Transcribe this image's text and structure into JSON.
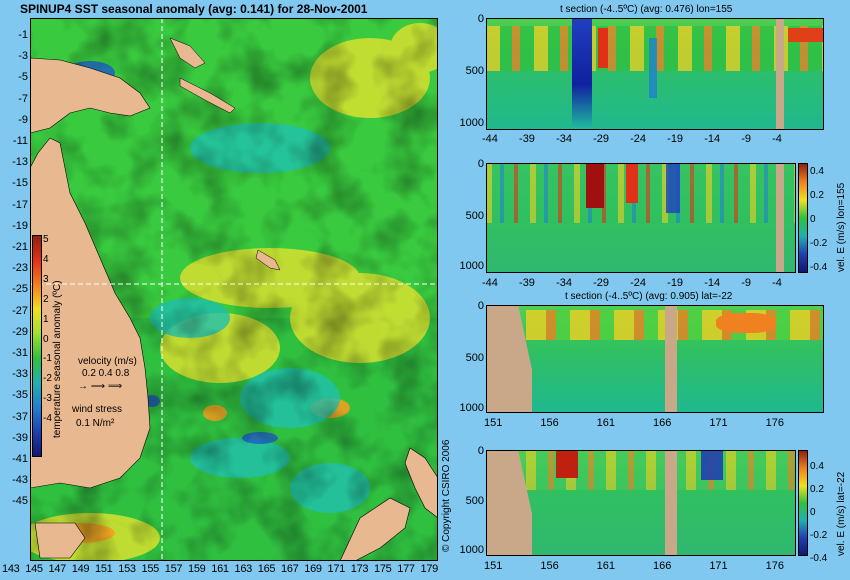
{
  "map": {
    "title": "SPINUP4 SST seasonal anomaly (avg: 0.141) for 28-Nov-2001",
    "y_ticks": [
      "-1",
      "-3",
      "-5",
      "-7",
      "-9",
      "-11",
      "-13",
      "-15",
      "-17",
      "-19",
      "-21",
      "-23",
      "-25",
      "-27",
      "-29",
      "-31",
      "-33",
      "-35",
      "-37",
      "-39",
      "-41",
      "-43",
      "-45"
    ],
    "x_ticks": [
      "143",
      "145",
      "147",
      "149",
      "151",
      "153",
      "155",
      "157",
      "159",
      "161",
      "163",
      "165",
      "167",
      "169",
      "171",
      "173",
      "175",
      "177",
      "179"
    ],
    "colorbar": {
      "label": "temperature seasonal anomaly (ºC)",
      "ticks": [
        "5",
        "4",
        "3",
        "2",
        "1",
        "0",
        "-1",
        "-2",
        "-3",
        "-4"
      ],
      "range": [
        -4,
        5
      ]
    },
    "velocity_legend": {
      "label": "velocity (m/s)",
      "values": "0.2 0.4 0.8"
    },
    "wind_legend": {
      "label": "wind stress",
      "value": "0.1 N/m²"
    },
    "copyright": "© Copyright CSIRO 2006"
  },
  "sections": [
    {
      "title": "t section (-4..5ºC) (avg: 0.476) lon=155",
      "side_label": "",
      "y_ticks": [
        "0",
        "500",
        "1000"
      ],
      "x_ticks": [
        "-44",
        "-39",
        "-34",
        "-29",
        "-24",
        "-19",
        "-14",
        "-9",
        "-4"
      ]
    },
    {
      "title": "",
      "side_label": "vel. E (m/s) lon=155",
      "y_ticks": [
        "0",
        "500",
        "1000"
      ],
      "x_ticks": [
        "-44",
        "-39",
        "-34",
        "-29",
        "-24",
        "-19",
        "-14",
        "-9",
        "-4"
      ],
      "cb_ticks": [
        "0.4",
        "0.2",
        "0",
        "-0.2",
        "-0.4"
      ]
    },
    {
      "title": "t section (-4..5ºC) (avg: 0.905) lat=-22",
      "side_label": "",
      "y_ticks": [
        "0",
        "500",
        "1000"
      ],
      "x_ticks": [
        "151",
        "156",
        "161",
        "166",
        "171",
        "176"
      ]
    },
    {
      "title": "",
      "side_label": "vel. E (m/s) lat=-22",
      "y_ticks": [
        "0",
        "500",
        "1000"
      ],
      "x_ticks": [
        "151",
        "156",
        "161",
        "166",
        "171",
        "176"
      ],
      "cb_ticks": [
        "0.4",
        "0.2",
        "0",
        "-0.2",
        "-0.4"
      ]
    }
  ],
  "colors": {
    "background": "#80c8f0",
    "land": "#e8b890",
    "seafloor": "#c8a888"
  }
}
